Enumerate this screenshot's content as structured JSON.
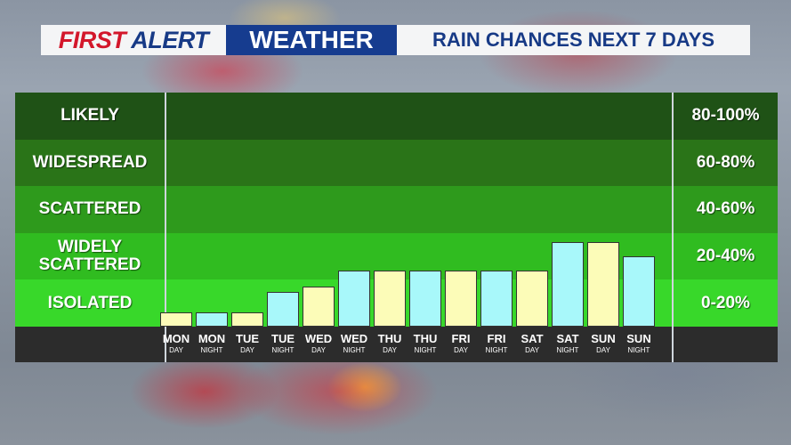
{
  "banner": {
    "first": "FIRST",
    "alert": "ALERT",
    "weather": "WEATHER",
    "subtitle": "RAIN CHANCES NEXT 7 DAYS"
  },
  "colors": {
    "day_bar": "#fcfcb8",
    "night_bar": "#a8f8fa",
    "band_likely": "#1f5216",
    "band_widespread": "#2a7418",
    "band_scattered": "#2e9a1c",
    "band_widely_scattered": "#30bc20",
    "band_isolated": "#38d82a"
  },
  "chart_data": {
    "type": "bar",
    "title": "RAIN CHANCES NEXT 7 DAYS",
    "categories": [
      {
        "day": "MON",
        "period": "DAY"
      },
      {
        "day": "MON",
        "period": "NIGHT"
      },
      {
        "day": "TUE",
        "period": "DAY"
      },
      {
        "day": "TUE",
        "period": "NIGHT"
      },
      {
        "day": "WED",
        "period": "DAY"
      },
      {
        "day": "WED",
        "period": "NIGHT"
      },
      {
        "day": "THU",
        "period": "DAY"
      },
      {
        "day": "THU",
        "period": "NIGHT"
      },
      {
        "day": "FRI",
        "period": "DAY"
      },
      {
        "day": "FRI",
        "period": "NIGHT"
      },
      {
        "day": "SAT",
        "period": "DAY"
      },
      {
        "day": "SAT",
        "period": "NIGHT"
      },
      {
        "day": "SUN",
        "period": "DAY"
      },
      {
        "day": "SUN",
        "period": "NIGHT"
      }
    ],
    "values": [
      6,
      6,
      6,
      15,
      17,
      24,
      24,
      24,
      24,
      24,
      24,
      36,
      36,
      30
    ],
    "ylim": [
      0,
      100
    ],
    "bands": [
      {
        "label": [
          "LIKELY"
        ],
        "range": "80-100%"
      },
      {
        "label": [
          "WIDESPREAD"
        ],
        "range": "60-80%"
      },
      {
        "label": [
          "SCATTERED"
        ],
        "range": "40-60%"
      },
      {
        "label": [
          "WIDELY",
          "SCATTERED"
        ],
        "range": "20-40%"
      },
      {
        "label": [
          "ISOLATED"
        ],
        "range": "0-20%"
      }
    ]
  }
}
